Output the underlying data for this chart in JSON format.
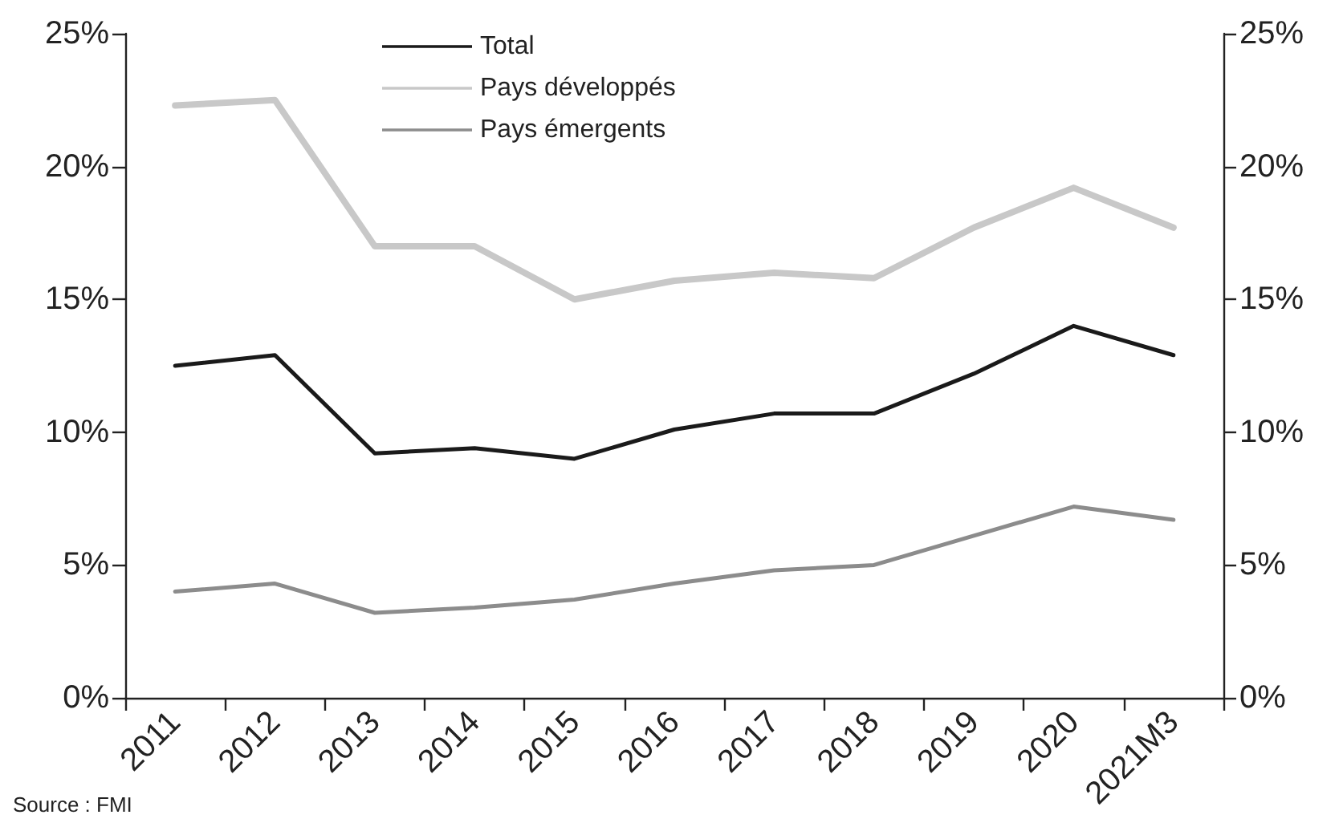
{
  "chart_data": {
    "type": "line",
    "categories": [
      "2011",
      "2012",
      "2013",
      "2014",
      "2015",
      "2016",
      "2017",
      "2018",
      "2019",
      "2020",
      "2021M3"
    ],
    "series": [
      {
        "name": "Total",
        "color": "#1a1a1a",
        "values": [
          12.5,
          12.9,
          9.2,
          9.4,
          9.0,
          10.1,
          10.7,
          10.7,
          12.2,
          14.0,
          12.9
        ]
      },
      {
        "name": "Pays développés",
        "color": "#c8c8c8",
        "values": [
          22.3,
          22.5,
          17.0,
          17.0,
          15.0,
          15.7,
          16.0,
          15.8,
          17.7,
          19.2,
          17.7
        ]
      },
      {
        "name": "Pays émergents",
        "color": "#8c8c8c",
        "values": [
          4.0,
          4.3,
          3.2,
          3.4,
          3.7,
          4.3,
          4.8,
          5.0,
          6.1,
          7.2,
          6.7
        ]
      }
    ],
    "ylim": [
      0,
      25
    ],
    "yticks": [
      {
        "value": 0,
        "label": "0%"
      },
      {
        "value": 5,
        "label": "5%"
      },
      {
        "value": 10,
        "label": "10%"
      },
      {
        "value": 15,
        "label": "15%"
      },
      {
        "value": 20,
        "label": "20%"
      },
      {
        "value": 25,
        "label": "25%"
      }
    ],
    "y2lim": [
      0,
      25
    ],
    "y2ticks": [
      {
        "value": 0,
        "label": "0%"
      },
      {
        "value": 5,
        "label": "5%"
      },
      {
        "value": 10,
        "label": "10%"
      },
      {
        "value": 15,
        "label": "15%"
      },
      {
        "value": 20,
        "label": "20%"
      },
      {
        "value": 25,
        "label": "25%"
      }
    ],
    "legend": "top",
    "grid": false,
    "marker": "none",
    "line_style": "solid",
    "annotations": [
      "Source : FMI"
    ]
  }
}
